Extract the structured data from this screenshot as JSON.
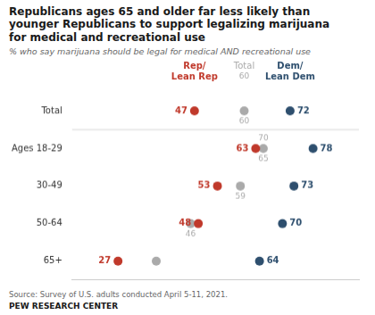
{
  "chart_data": {
    "type": "dot",
    "title": "Republicans ages 65 and older far less likely than\nyounger Republicans to support legalizing marijuana\nfor medical and recreational use",
    "subtitle": "% who say marijuana should be legal for medical AND recreational use",
    "source": "Source: Survey of U.S. adults conducted April 5-11, 2021.",
    "footer": "PEW RESEARCH CENTER",
    "orientation": "horizontal",
    "categories": [
      "Total",
      "Ages 18-29",
      "30-49",
      "50-64",
      "65+"
    ],
    "series": [
      {
        "name": "Rep/\nLean Rep",
        "color": "#c0392b",
        "values": [
          47,
          63,
          53,
          48,
          27
        ]
      },
      {
        "name": "Total",
        "color": "#aaaaaa",
        "values": [
          60,
          65,
          59,
          46,
          37
        ],
        "value_labels": [
          "60",
          "65",
          "59",
          "46",
          null
        ],
        "label_above": [
          null,
          70,
          null,
          null,
          null
        ],
        "header_value": 60
      },
      {
        "name": "Dem/\nLean Dem",
        "color": "#2e4f6e",
        "values": [
          72,
          78,
          73,
          70,
          64
        ]
      }
    ],
    "xlim": [
      15,
      90
    ],
    "tick_labels": "y",
    "grid": false,
    "data_labels": true
  }
}
